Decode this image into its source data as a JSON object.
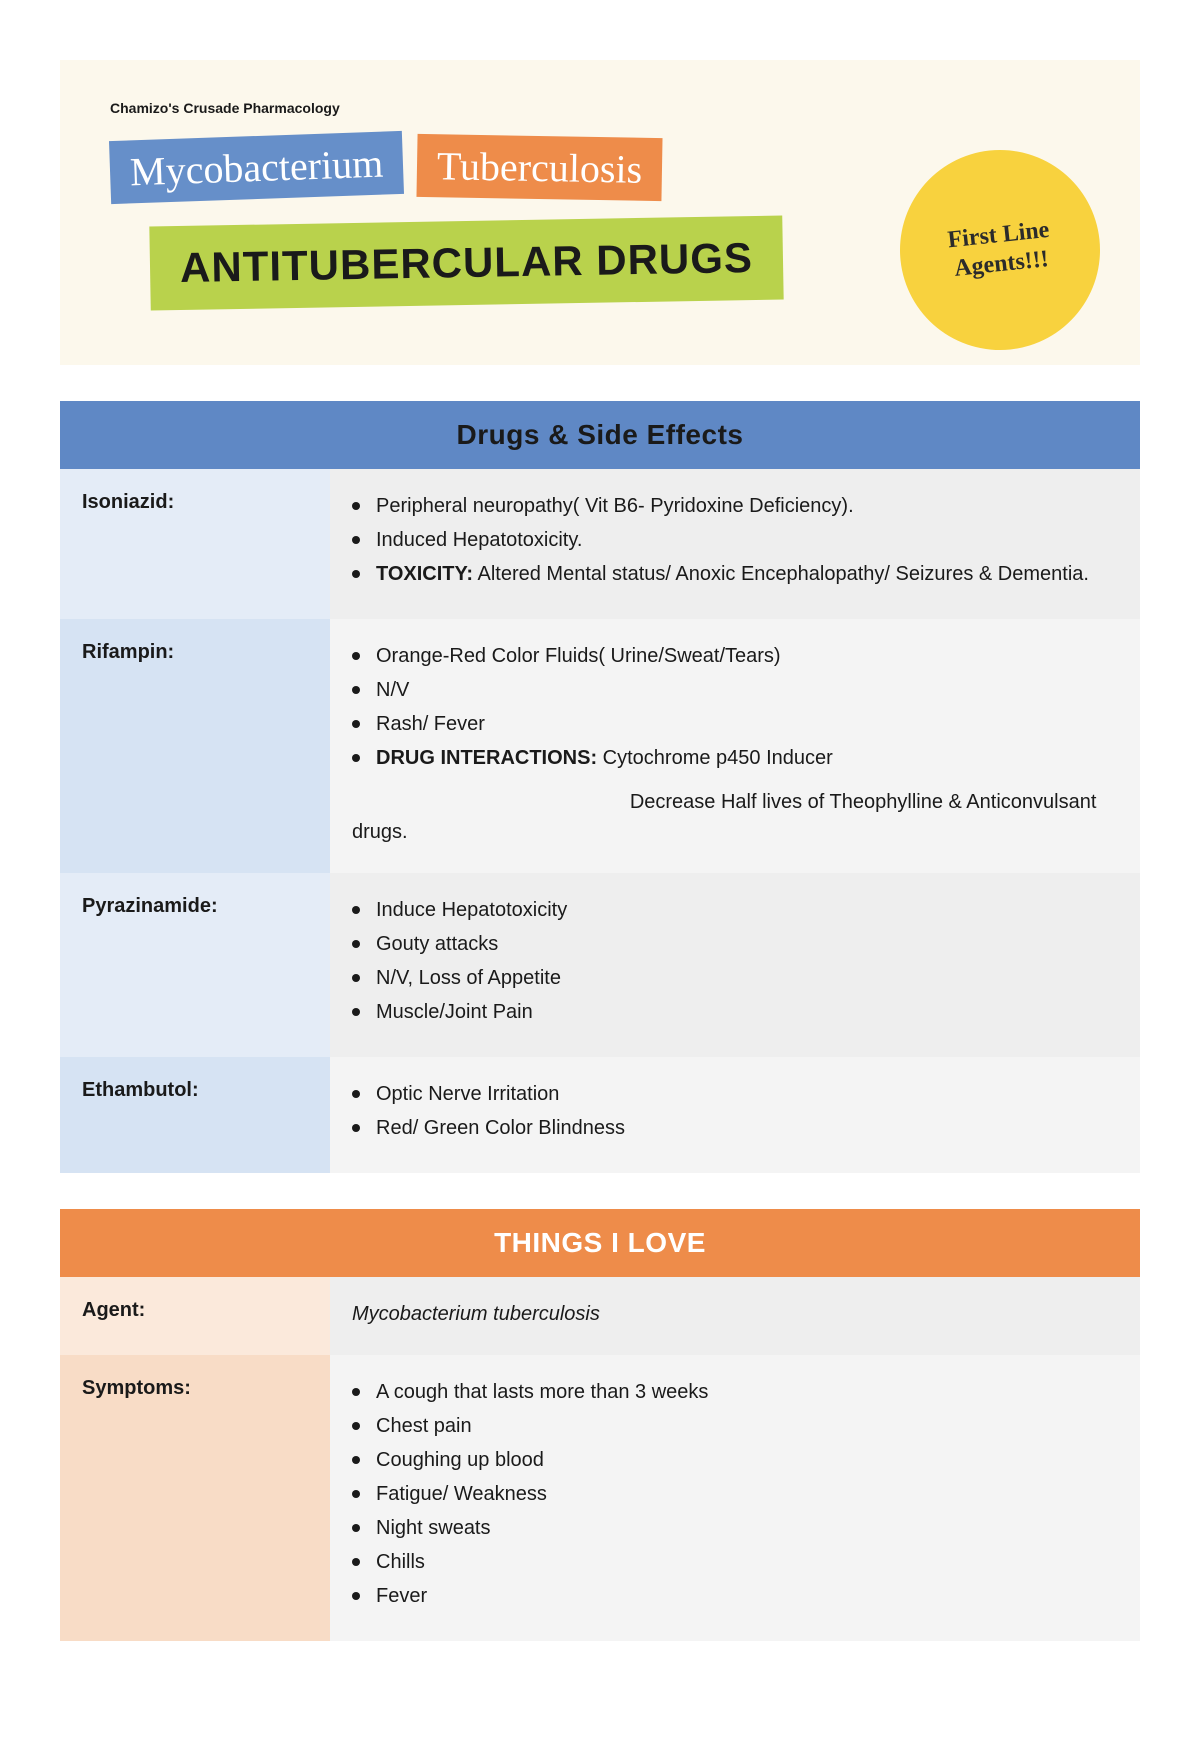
{
  "colors": {
    "hero_bg": "#fcf8ec",
    "tag_blue": "#668fc9",
    "tag_orange": "#ee8c4a",
    "big_title_bg": "#b9d24c",
    "circle_bg": "#f8d23e",
    "section1_head_bg": "#5f88c5",
    "section1_head_color": "#1a1a1a",
    "section2_head_bg": "#ee8c4a",
    "section2_head_color": "#ffffff",
    "s1_label_odd": "#e4ecf7",
    "s1_label_even": "#d6e3f3",
    "content_odd": "#eeeeee",
    "content_even": "#f4f4f4",
    "s2_label_odd": "#fbe9db",
    "s2_label_even": "#f8dcc6",
    "text": "#1a1a1a"
  },
  "typography": {
    "smallheader_size_pt": 11,
    "tag_size_pt": 30,
    "bigtitle_size_pt": 32,
    "circle_size_pt": 18,
    "section_head_size_pt": 21,
    "label_size_pt": 15,
    "body_size_pt": 15
  },
  "hero": {
    "small_header": "Chamizo's Crusade Pharmacology",
    "tag1": "Mycobacterium",
    "tag2": "Tuberculosis",
    "big_title": "ANTITUBERCULAR DRUGS",
    "circle_text": "First Line Agents!!!"
  },
  "section1": {
    "title": "Drugs & Side Effects",
    "rows": [
      {
        "label": "Isoniazid:",
        "bullets": [
          "Peripheral neuropathy( Vit B6- Pyridoxine Deficiency).",
          "Induced Hepatotoxicity.",
          "<b>TOXICITY:</b>  Altered Mental status/ Anoxic Encephalopathy/ Seizures & Dementia."
        ]
      },
      {
        "label": "Rifampin:",
        "bullets": [
          "Orange-Red Color Fluids( Urine/Sweat/Tears)",
          "N/V",
          "Rash/ Fever",
          "<b>DRUG INTERACTIONS:</b> Cytochrome p450 Inducer"
        ],
        "note": "                                                  Decrease Half lives of Theophylline & Anticonvulsant drugs."
      },
      {
        "label": "Pyrazinamide:",
        "bullets": [
          "Induce Hepatotoxicity",
          "Gouty attacks",
          "N/V, Loss of Appetite",
          "Muscle/Joint Pain"
        ]
      },
      {
        "label": "Ethambutol:",
        "bullets": [
          "Optic Nerve Irritation",
          "Red/ Green Color Blindness"
        ]
      }
    ]
  },
  "section2": {
    "title": "THINGS I LOVE",
    "rows": [
      {
        "label": "Agent:",
        "value_italic": "Mycobacterium tuberculosis"
      },
      {
        "label": "Symptoms:",
        "bullets": [
          "A cough that lasts more than 3 weeks",
          "Chest pain",
          "Coughing up blood",
          "Fatigue/ Weakness",
          "Night sweats",
          "Chills",
          "Fever"
        ]
      }
    ]
  }
}
